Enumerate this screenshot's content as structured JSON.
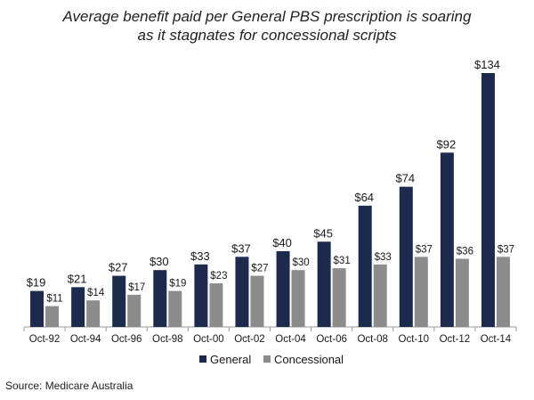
{
  "chart_data": {
    "type": "bar",
    "title_lines": [
      "Average benefit paid per General PBS prescription is soaring",
      "as it stagnates for concessional scripts"
    ],
    "categories": [
      "Oct-92",
      "Oct-94",
      "Oct-96",
      "Oct-98",
      "Oct-00",
      "Oct-02",
      "Oct-04",
      "Oct-06",
      "Oct-08",
      "Oct-10",
      "Oct-12",
      "Oct-14"
    ],
    "series": [
      {
        "name": "General",
        "color": "#1c2a4d",
        "values": [
          19,
          21,
          27,
          30,
          33,
          37,
          40,
          45,
          64,
          74,
          92,
          134
        ],
        "labels": [
          "$19",
          "$21",
          "$27",
          "$30",
          "$33",
          "$37",
          "$40",
          "$45",
          "$64",
          "$74",
          "$92",
          "$134"
        ]
      },
      {
        "name": "Concessional",
        "color": "#8c8c8c",
        "values": [
          11,
          14,
          17,
          19,
          23,
          27,
          30,
          31,
          33,
          37,
          36,
          37
        ],
        "labels": [
          "$11",
          "$14",
          "$17",
          "$19",
          "$23",
          "$27",
          "$30",
          "$31",
          "$33",
          "$37",
          "$36",
          "$37"
        ]
      }
    ],
    "ylim": [
      0,
      134
    ],
    "grid": false,
    "legend_position": "bottom-center"
  },
  "source": "Source: Medicare Australia"
}
